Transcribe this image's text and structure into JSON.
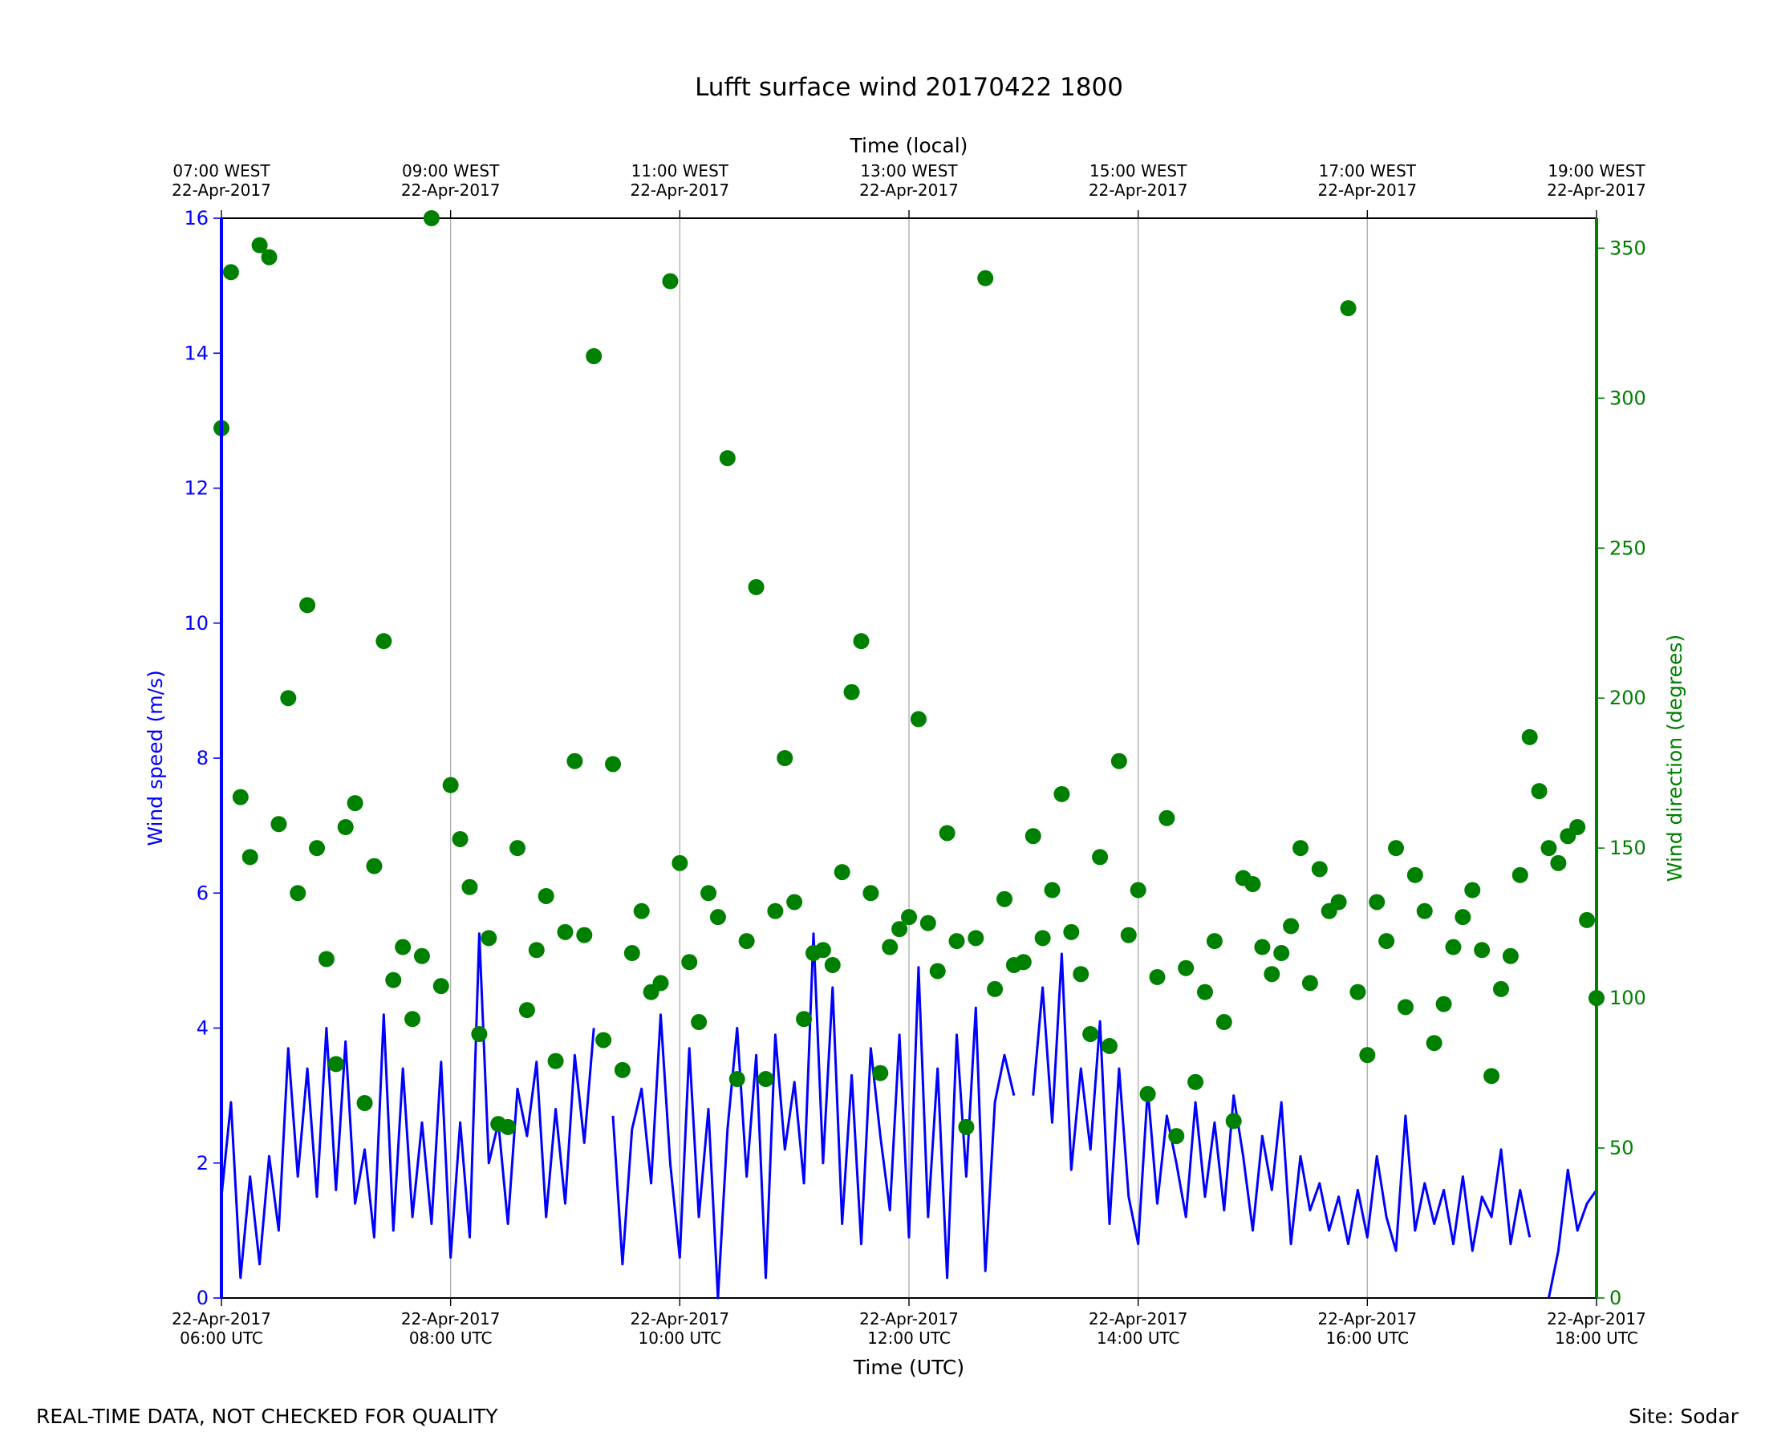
{
  "chart_data": {
    "type": "line",
    "title": "Lufft surface wind 20170422 1800",
    "xlabel": "Time (UTC)",
    "x2label": "Time (local)",
    "ylabel": "Wind speed (m/s)",
    "y2label": "Wind direction (degrees)",
    "note": "REAL-TIME DATA, NOT CHECKED FOR QUALITY",
    "site": "Site: Sodar",
    "grid": true,
    "xlim": [
      "2017-04-22 06:00",
      "2017-04-22 18:00"
    ],
    "xticks": [
      {
        "value": "2017-04-22 06:00",
        "label": "22-Apr-2017\n06:00 UTC"
      },
      {
        "value": "2017-04-22 08:00",
        "label": "22-Apr-2017\n08:00 UTC"
      },
      {
        "value": "2017-04-22 10:00",
        "label": "22-Apr-2017\n10:00 UTC"
      },
      {
        "value": "2017-04-22 12:00",
        "label": "22-Apr-2017\n12:00 UTC"
      },
      {
        "value": "2017-04-22 14:00",
        "label": "22-Apr-2017\n14:00 UTC"
      },
      {
        "value": "2017-04-22 16:00",
        "label": "22-Apr-2017\n16:00 UTC"
      },
      {
        "value": "2017-04-22 18:00",
        "label": "22-Apr-2017\n18:00 UTC"
      }
    ],
    "x2ticks": [
      {
        "value": "2017-04-22 06:00",
        "label": "07:00 WEST\n22-Apr-2017"
      },
      {
        "value": "2017-04-22 08:00",
        "label": "09:00 WEST\n22-Apr-2017"
      },
      {
        "value": "2017-04-22 10:00",
        "label": "11:00 WEST\n22-Apr-2017"
      },
      {
        "value": "2017-04-22 12:00",
        "label": "13:00 WEST\n22-Apr-2017"
      },
      {
        "value": "2017-04-22 14:00",
        "label": "15:00 WEST\n22-Apr-2017"
      },
      {
        "value": "2017-04-22 16:00",
        "label": "17:00 WEST\n22-Apr-2017"
      },
      {
        "value": "2017-04-22 18:00",
        "label": "19:00 WEST\n22-Apr-2017"
      }
    ],
    "ylim": [
      0,
      16
    ],
    "yticks": [
      0,
      2,
      4,
      6,
      8,
      10,
      12,
      14,
      16
    ],
    "y2lim": [
      0,
      360
    ],
    "y2ticks": [
      0,
      50,
      100,
      150,
      200,
      250,
      300,
      350
    ],
    "x": [
      "2017-04-22 06:00",
      "2017-04-22 06:05",
      "2017-04-22 06:10",
      "2017-04-22 06:15",
      "2017-04-22 06:20",
      "2017-04-22 06:25",
      "2017-04-22 06:30",
      "2017-04-22 06:35",
      "2017-04-22 06:40",
      "2017-04-22 06:45",
      "2017-04-22 06:50",
      "2017-04-22 06:55",
      "2017-04-22 07:00",
      "2017-04-22 07:05",
      "2017-04-22 07:10",
      "2017-04-22 07:15",
      "2017-04-22 07:20",
      "2017-04-22 07:25",
      "2017-04-22 07:30",
      "2017-04-22 07:35",
      "2017-04-22 07:40",
      "2017-04-22 07:45",
      "2017-04-22 07:50",
      "2017-04-22 07:55",
      "2017-04-22 08:00",
      "2017-04-22 08:05",
      "2017-04-22 08:10",
      "2017-04-22 08:15",
      "2017-04-22 08:20",
      "2017-04-22 08:25",
      "2017-04-22 08:30",
      "2017-04-22 08:35",
      "2017-04-22 08:40",
      "2017-04-22 08:45",
      "2017-04-22 08:50",
      "2017-04-22 08:55",
      "2017-04-22 09:00",
      "2017-04-22 09:05",
      "2017-04-22 09:10",
      "2017-04-22 09:15",
      "2017-04-22 09:20",
      "2017-04-22 09:25",
      "2017-04-22 09:30",
      "2017-04-22 09:35",
      "2017-04-22 09:40",
      "2017-04-22 09:45",
      "2017-04-22 09:50",
      "2017-04-22 09:55",
      "2017-04-22 10:00",
      "2017-04-22 10:05",
      "2017-04-22 10:10",
      "2017-04-22 10:15",
      "2017-04-22 10:20",
      "2017-04-22 10:25",
      "2017-04-22 10:30",
      "2017-04-22 10:35",
      "2017-04-22 10:40",
      "2017-04-22 10:45",
      "2017-04-22 10:50",
      "2017-04-22 10:55",
      "2017-04-22 11:00",
      "2017-04-22 11:05",
      "2017-04-22 11:10",
      "2017-04-22 11:15",
      "2017-04-22 11:20",
      "2017-04-22 11:25",
      "2017-04-22 11:30",
      "2017-04-22 11:35",
      "2017-04-22 11:40",
      "2017-04-22 11:45",
      "2017-04-22 11:50",
      "2017-04-22 11:55",
      "2017-04-22 12:00",
      "2017-04-22 12:05",
      "2017-04-22 12:10",
      "2017-04-22 12:15",
      "2017-04-22 12:20",
      "2017-04-22 12:25",
      "2017-04-22 12:30",
      "2017-04-22 12:35",
      "2017-04-22 12:40",
      "2017-04-22 12:45",
      "2017-04-22 12:50",
      "2017-04-22 12:55",
      "2017-04-22 13:00",
      "2017-04-22 13:05",
      "2017-04-22 13:10",
      "2017-04-22 13:15",
      "2017-04-22 13:20",
      "2017-04-22 13:25",
      "2017-04-22 13:30",
      "2017-04-22 13:35",
      "2017-04-22 13:40",
      "2017-04-22 13:45",
      "2017-04-22 13:50",
      "2017-04-22 13:55",
      "2017-04-22 14:00",
      "2017-04-22 14:05",
      "2017-04-22 14:10",
      "2017-04-22 14:15",
      "2017-04-22 14:20",
      "2017-04-22 14:25",
      "2017-04-22 14:30",
      "2017-04-22 14:35",
      "2017-04-22 14:40",
      "2017-04-22 14:45",
      "2017-04-22 14:50",
      "2017-04-22 14:55",
      "2017-04-22 15:00",
      "2017-04-22 15:05",
      "2017-04-22 15:10",
      "2017-04-22 15:15",
      "2017-04-22 15:20",
      "2017-04-22 15:25",
      "2017-04-22 15:30",
      "2017-04-22 15:35",
      "2017-04-22 15:40",
      "2017-04-22 15:45",
      "2017-04-22 15:50",
      "2017-04-22 15:55",
      "2017-04-22 16:00",
      "2017-04-22 16:05",
      "2017-04-22 16:10",
      "2017-04-22 16:15",
      "2017-04-22 16:20",
      "2017-04-22 16:25",
      "2017-04-22 16:30",
      "2017-04-22 16:35",
      "2017-04-22 16:40",
      "2017-04-22 16:45",
      "2017-04-22 16:50",
      "2017-04-22 16:55",
      "2017-04-22 17:00",
      "2017-04-22 17:05",
      "2017-04-22 17:10",
      "2017-04-22 17:15",
      "2017-04-22 17:20",
      "2017-04-22 17:25",
      "2017-04-22 17:30",
      "2017-04-22 17:35",
      "2017-04-22 17:40",
      "2017-04-22 17:45",
      "2017-04-22 17:50",
      "2017-04-22 17:55",
      "2017-04-22 18:00"
    ],
    "series": [
      {
        "name": "Wind speed",
        "type": "line",
        "color": "#0000ff",
        "values": [
          1.5,
          2.9,
          0.3,
          1.8,
          0.5,
          2.1,
          1.0,
          3.7,
          1.8,
          3.4,
          1.5,
          4.0,
          1.6,
          3.8,
          1.4,
          2.2,
          0.9,
          4.2,
          1.0,
          3.4,
          1.2,
          2.6,
          1.1,
          3.5,
          0.6,
          2.6,
          0.9,
          5.4,
          2.0,
          2.6,
          1.1,
          3.1,
          2.4,
          3.5,
          1.2,
          2.8,
          1.4,
          3.6,
          2.3,
          4.0,
          null,
          2.7,
          0.5,
          2.5,
          3.1,
          1.7,
          4.2,
          2.0,
          0.6,
          3.7,
          1.2,
          2.8,
          0.0,
          2.5,
          4.0,
          1.8,
          3.6,
          0.3,
          3.9,
          2.2,
          3.2,
          1.7,
          5.4,
          2.0,
          4.6,
          1.1,
          3.3,
          0.8,
          3.7,
          2.4,
          1.3,
          3.9,
          0.9,
          4.9,
          1.2,
          3.4,
          0.3,
          3.9,
          1.8,
          4.3,
          0.4,
          2.9,
          3.6,
          3.0,
          null,
          3.0,
          4.6,
          2.6,
          5.1,
          1.9,
          3.4,
          2.2,
          4.1,
          1.1,
          3.4,
          1.5,
          0.8,
          3.1,
          1.4,
          2.7,
          2.0,
          1.2,
          2.9,
          1.5,
          2.6,
          1.3,
          3.0,
          2.1,
          1.0,
          2.4,
          1.6,
          2.9,
          0.8,
          2.1,
          1.3,
          1.7,
          1.0,
          1.5,
          0.8,
          1.6,
          0.9,
          2.1,
          1.2,
          0.7,
          2.7,
          1.0,
          1.7,
          1.1,
          1.6,
          0.8,
          1.8,
          0.7,
          1.5,
          1.2,
          2.2,
          0.8,
          1.6,
          0.9,
          null,
          0.0,
          0.7,
          1.9,
          1.0,
          1.4,
          1.6
        ]
      },
      {
        "name": "Wind direction",
        "type": "scatter",
        "axis": "y2",
        "color": "#008000",
        "values": [
          290,
          342,
          167,
          147,
          351,
          347,
          158,
          200,
          135,
          231,
          150,
          113,
          78,
          157,
          165,
          65,
          144,
          219,
          106,
          117,
          93,
          114,
          360,
          104,
          171,
          153,
          137,
          88,
          120,
          58,
          57,
          150,
          96,
          116,
          134,
          79,
          122,
          179,
          121,
          314,
          86,
          178,
          76,
          115,
          129,
          102,
          105,
          339,
          145,
          112,
          92,
          135,
          127,
          280,
          73,
          119,
          237,
          73,
          129,
          180,
          132,
          93,
          115,
          116,
          111,
          142,
          202,
          219,
          135,
          75,
          117,
          123,
          127,
          193,
          125,
          109,
          155,
          119,
          57,
          120,
          340,
          103,
          133,
          111,
          112,
          154,
          120,
          136,
          168,
          122,
          108,
          88,
          147,
          84,
          179,
          121,
          136,
          68,
          107,
          160,
          54,
          110,
          72,
          102,
          119,
          92,
          59,
          140,
          138,
          117,
          108,
          115,
          124,
          150,
          105,
          143,
          129,
          132,
          330,
          102,
          81,
          132,
          119,
          150,
          97,
          141,
          129,
          85,
          98,
          117,
          127,
          136,
          116,
          74,
          103,
          114,
          141,
          187,
          169,
          150,
          145,
          154,
          157,
          126,
          100
        ]
      }
    ]
  }
}
